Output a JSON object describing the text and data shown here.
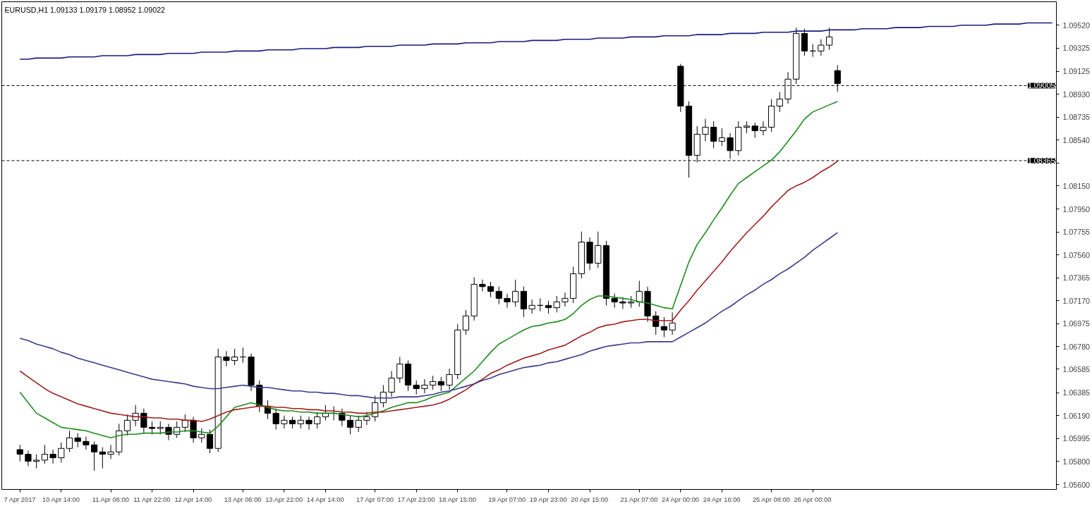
{
  "chart_data": {
    "type": "candlestick",
    "title": "EURUSD,H1  1.09133 1.09179 1.08952 1.09022",
    "color": "#000000",
    "categories": [
      "7 Apr 2017",
      null,
      null,
      null,
      null,
      "10 Apr 14:00",
      null,
      null,
      null,
      null,
      null,
      "11 Apr 06:00",
      null,
      null,
      null,
      null,
      "11 Apr 22:00",
      null,
      null,
      null,
      null,
      "12 Apr 14:00",
      null,
      null,
      null,
      null,
      null,
      "13 Apr 06:00",
      null,
      null,
      null,
      null,
      "13 Apr 22:00",
      null,
      null,
      null,
      null,
      "14 Apr 14:00",
      null,
      null,
      null,
      null,
      null,
      "17 Apr 07:00",
      null,
      null,
      null,
      null,
      "17 Apr 23:00",
      null,
      null,
      null,
      null,
      "18 Apr 15:00",
      null,
      null,
      null,
      null,
      null,
      "19 Apr 07:00",
      null,
      null,
      null,
      null,
      "19 Apr 23:00",
      null,
      null,
      null,
      null,
      "20 Apr 15:00",
      null,
      null,
      null,
      null,
      null,
      "21 Apr 07:00",
      null,
      null,
      null,
      null,
      "24 Apr 00:00",
      null,
      null,
      null,
      null,
      "24 Apr 16:00",
      null,
      null,
      null,
      null,
      null,
      "25 Apr 08:00",
      null,
      null,
      null,
      null,
      "26 Apr 00:00",
      null,
      null,
      null,
      null,
      null,
      null,
      null,
      null,
      null,
      null,
      null,
      null,
      null,
      null,
      null,
      null,
      null,
      null,
      null,
      null,
      null,
      null,
      null,
      null,
      null,
      null,
      null,
      null,
      null
    ],
    "ohlc": [
      [
        1.059,
        1.0594,
        1.058,
        1.0586
      ],
      [
        1.0586,
        1.0589,
        1.0576,
        1.058
      ],
      [
        1.058,
        1.0586,
        1.0574,
        1.0581
      ],
      [
        1.0581,
        1.0594,
        1.0578,
        1.0586
      ],
      [
        1.0586,
        1.059,
        1.0578,
        1.0583
      ],
      [
        1.0583,
        1.0596,
        1.0579,
        1.0591
      ],
      [
        1.0591,
        1.0606,
        1.0588,
        1.06
      ],
      [
        1.06,
        1.0604,
        1.0592,
        1.0597
      ],
      [
        1.0597,
        1.0601,
        1.059,
        1.0594
      ],
      [
        1.0594,
        1.0597,
        1.0572,
        1.0588
      ],
      [
        1.0588,
        1.0592,
        1.0574,
        1.0586
      ],
      [
        1.0586,
        1.0594,
        1.0582,
        1.0588
      ],
      [
        1.0588,
        1.0612,
        1.0585,
        1.0606
      ],
      [
        1.0606,
        1.062,
        1.0602,
        1.0615
      ],
      [
        1.0615,
        1.0628,
        1.061,
        1.0621
      ],
      [
        1.0621,
        1.0625,
        1.0604,
        1.0609
      ],
      [
        1.0609,
        1.0614,
        1.0603,
        1.0608
      ],
      [
        1.0608,
        1.0614,
        1.0603,
        1.0609
      ],
      [
        1.0609,
        1.0612,
        1.0598,
        1.0603
      ],
      [
        1.0603,
        1.0614,
        1.06,
        1.0609
      ],
      [
        1.0609,
        1.062,
        1.0605,
        1.0615
      ],
      [
        1.0615,
        1.0618,
        1.0596,
        1.06
      ],
      [
        1.06,
        1.0608,
        1.0596,
        1.0603
      ],
      [
        1.0603,
        1.0607,
        1.0587,
        1.0591
      ],
      [
        1.0591,
        1.0676,
        1.0588,
        1.0669
      ],
      [
        1.0669,
        1.0674,
        1.0661,
        1.0666
      ],
      [
        1.0666,
        1.0676,
        1.0662,
        1.0669
      ],
      [
        1.0669,
        1.0677,
        1.0664,
        1.0669
      ],
      [
        1.0669,
        1.0672,
        1.064,
        1.0645
      ],
      [
        1.0645,
        1.0649,
        1.0622,
        1.0627
      ],
      [
        1.0627,
        1.0632,
        1.0616,
        1.0621
      ],
      [
        1.0621,
        1.0625,
        1.0607,
        1.0612
      ],
      [
        1.0612,
        1.0619,
        1.0608,
        1.0615
      ],
      [
        1.0615,
        1.0618,
        1.0608,
        1.0612
      ],
      [
        1.0612,
        1.0619,
        1.0608,
        1.0615
      ],
      [
        1.0615,
        1.0618,
        1.0607,
        1.0612
      ],
      [
        1.0612,
        1.0622,
        1.0608,
        1.0618
      ],
      [
        1.0618,
        1.0628,
        1.0615,
        1.0621
      ],
      [
        1.0621,
        1.0627,
        1.0615,
        1.0621
      ],
      [
        1.0621,
        1.0625,
        1.061,
        1.0615
      ],
      [
        1.0615,
        1.0619,
        1.0603,
        1.0609
      ],
      [
        1.0609,
        1.0619,
        1.0605,
        1.0615
      ],
      [
        1.0615,
        1.0622,
        1.0611,
        1.0618
      ],
      [
        1.0618,
        1.0636,
        1.0614,
        1.063
      ],
      [
        1.063,
        1.0645,
        1.0626,
        1.0639
      ],
      [
        1.0639,
        1.0657,
        1.0635,
        1.0651
      ],
      [
        1.0651,
        1.0669,
        1.0647,
        1.0663
      ],
      [
        1.0663,
        1.0666,
        1.064,
        1.0645
      ],
      [
        1.0645,
        1.0649,
        1.0637,
        1.0642
      ],
      [
        1.0642,
        1.065,
        1.0638,
        1.0645
      ],
      [
        1.0645,
        1.0653,
        1.0641,
        1.0648
      ],
      [
        1.0648,
        1.0652,
        1.064,
        1.0645
      ],
      [
        1.0645,
        1.0659,
        1.0641,
        1.0654
      ],
      [
        1.0654,
        1.0697,
        1.065,
        1.0692
      ],
      [
        1.0692,
        1.0709,
        1.0688,
        1.0704
      ],
      [
        1.0704,
        1.0737,
        1.07,
        1.0731
      ],
      [
        1.0731,
        1.0735,
        1.0725,
        1.0729
      ],
      [
        1.0729,
        1.0733,
        1.072,
        1.0725
      ],
      [
        1.0725,
        1.0729,
        1.0714,
        1.0719
      ],
      [
        1.0719,
        1.0723,
        1.0711,
        1.0716
      ],
      [
        1.0716,
        1.0735,
        1.0712,
        1.0725
      ],
      [
        1.0725,
        1.0729,
        1.0703,
        1.071
      ],
      [
        1.071,
        1.0718,
        1.0706,
        1.0713
      ],
      [
        1.0713,
        1.0719,
        1.0708,
        1.0713
      ],
      [
        1.0713,
        1.0717,
        1.0706,
        1.0711
      ],
      [
        1.0711,
        1.0721,
        1.0707,
        1.0716
      ],
      [
        1.0716,
        1.0724,
        1.0712,
        1.0719
      ],
      [
        1.0719,
        1.0746,
        1.0715,
        1.074
      ],
      [
        1.074,
        1.0776,
        1.0736,
        1.0767
      ],
      [
        1.0767,
        1.0771,
        1.0743,
        1.0749
      ],
      [
        1.0749,
        1.0776,
        1.0745,
        1.0764
      ],
      [
        1.0764,
        1.0768,
        1.0713,
        1.0719
      ],
      [
        1.0719,
        1.0723,
        1.0711,
        1.0716
      ],
      [
        1.0716,
        1.072,
        1.071,
        1.0715
      ],
      [
        1.0715,
        1.0721,
        1.0711,
        1.0716
      ],
      [
        1.0716,
        1.0734,
        1.0712,
        1.0725
      ],
      [
        1.0725,
        1.0729,
        1.0699,
        1.0704
      ],
      [
        1.0704,
        1.0708,
        1.0688,
        1.0695
      ],
      [
        1.0695,
        1.0703,
        1.0686,
        1.0692
      ],
      [
        1.0692,
        1.0707,
        1.0688,
        1.0698
      ],
      [
        1.0917,
        1.0919,
        1.0878,
        1.0883
      ],
      [
        1.0883,
        1.0887,
        1.0822,
        1.0841
      ],
      [
        1.0841,
        1.0866,
        1.0835,
        1.0859
      ],
      [
        1.0859,
        1.0872,
        1.0853,
        1.0865
      ],
      [
        1.0865,
        1.087,
        1.0847,
        1.0853
      ],
      [
        1.0853,
        1.0864,
        1.0849,
        1.0856
      ],
      [
        1.0856,
        1.086,
        1.0838,
        1.0845
      ],
      [
        1.0845,
        1.087,
        1.0841,
        1.0865
      ],
      [
        1.0865,
        1.087,
        1.086,
        1.0866
      ],
      [
        1.0866,
        1.0869,
        1.0856,
        1.0862
      ],
      [
        1.0862,
        1.087,
        1.0858,
        1.0865
      ],
      [
        1.0865,
        1.0889,
        1.0861,
        1.0883
      ],
      [
        1.0883,
        1.0895,
        1.0878,
        1.0889
      ],
      [
        1.0889,
        1.0912,
        1.0885,
        1.0906
      ],
      [
        1.0906,
        1.095,
        1.0902,
        1.0945
      ],
      [
        1.0945,
        1.0949,
        1.0926,
        1.093
      ],
      [
        1.093,
        1.0936,
        1.0925,
        1.093
      ],
      [
        1.093,
        1.094,
        1.0926,
        1.0935
      ],
      [
        1.0935,
        1.095,
        1.0931,
        1.0942
      ],
      [
        1.09133,
        1.09179,
        1.08952,
        1.09022
      ],
      null,
      null,
      null,
      null,
      null,
      null,
      null,
      null,
      null,
      null,
      null,
      null,
      null,
      null,
      null,
      null,
      null,
      null,
      null,
      null,
      null,
      null,
      null,
      null,
      null,
      null
    ],
    "series": [
      {
        "type": "line",
        "color": "#1e8c1e",
        "values": [
          1.0639,
          1.063,
          1.0621,
          1.0617,
          1.0613,
          1.0609,
          1.0608,
          1.0607,
          1.0606,
          1.0604,
          1.0602,
          1.06,
          1.0602,
          1.0603,
          1.0603,
          1.0604,
          1.0604,
          1.0604,
          1.0605,
          1.0605,
          1.0606,
          1.0606,
          1.0605,
          1.0604,
          1.061,
          1.0618,
          1.0626,
          1.0628,
          1.063,
          1.0628,
          1.0626,
          1.0624,
          1.0623,
          1.0623,
          1.0622,
          1.0622,
          1.0621,
          1.0621,
          1.0621,
          1.062,
          1.0619,
          1.0618,
          1.0619,
          1.0621,
          1.0623,
          1.0626,
          1.0628,
          1.063,
          1.063,
          1.0632,
          1.0635,
          1.0637,
          1.0639,
          1.0645,
          1.0651,
          1.0657,
          1.0665,
          1.0673,
          1.068,
          1.0684,
          1.0688,
          1.0692,
          1.0695,
          1.0696,
          1.0698,
          1.0699,
          1.0701,
          1.0706,
          1.0713,
          1.0718,
          1.0721,
          1.0721,
          1.072,
          1.0719,
          1.0718,
          1.0716,
          1.0715,
          1.0713,
          1.0711,
          1.071,
          1.073,
          1.075,
          1.0765,
          1.0775,
          1.0786,
          1.0796,
          1.0807,
          1.0817,
          1.0822,
          1.0827,
          1.0832,
          1.0837,
          1.0844,
          1.0853,
          1.0862,
          1.0872,
          1.0878,
          1.0881,
          1.0884,
          1.0887,
          null,
          null,
          null,
          null,
          null,
          null,
          null,
          null,
          null,
          null,
          null,
          null,
          null,
          null,
          null,
          null,
          null,
          null,
          null,
          null,
          null,
          null,
          null,
          null,
          null,
          null
        ]
      },
      {
        "type": "line",
        "color": "#a01e1e",
        "values": [
          1.0657,
          1.0652,
          1.0647,
          1.0642,
          1.0638,
          1.0635,
          1.0632,
          1.0629,
          1.0627,
          1.0625,
          1.0623,
          1.0621,
          1.062,
          1.0619,
          1.0618,
          1.0618,
          1.0617,
          1.0617,
          1.0616,
          1.0616,
          1.0615,
          1.0615,
          1.0614,
          1.0616,
          1.0619,
          1.0622,
          1.0624,
          1.0625,
          1.0626,
          1.0627,
          1.0627,
          1.0626,
          1.0626,
          1.0625,
          1.0625,
          1.0624,
          1.0624,
          1.0623,
          1.0623,
          1.0622,
          1.0622,
          1.0621,
          1.0621,
          1.0622,
          1.0622,
          1.0623,
          1.0624,
          1.0625,
          1.0626,
          1.0627,
          1.0628,
          1.063,
          1.0633,
          1.0637,
          1.0641,
          1.0646,
          1.065,
          1.0655,
          1.0658,
          1.0662,
          1.0665,
          1.0668,
          1.067,
          1.0672,
          1.0675,
          1.0677,
          1.0679,
          1.0683,
          1.0687,
          1.069,
          1.0694,
          1.0696,
          1.0697,
          1.0699,
          1.07,
          1.0701,
          1.0701,
          1.07,
          1.07,
          1.07,
          1.0709,
          1.0717,
          1.0726,
          1.0734,
          1.0742,
          1.075,
          1.0759,
          1.0767,
          1.0775,
          1.0782,
          1.0789,
          1.0797,
          1.0804,
          1.0811,
          1.0815,
          1.0818,
          1.0822,
          1.0827,
          1.0831,
          1.0836,
          null,
          null,
          null,
          null,
          null,
          null,
          null,
          null,
          null,
          null,
          null,
          null,
          null,
          null,
          null,
          null,
          null,
          null,
          null,
          null,
          null,
          null,
          null,
          null,
          null,
          null
        ]
      },
      {
        "type": "line",
        "color": "#3a3a8c",
        "values": [
          1.0685,
          1.0683,
          1.068,
          1.0678,
          1.0676,
          1.0673,
          1.0671,
          1.0668,
          1.0666,
          1.0664,
          1.0662,
          1.066,
          1.0658,
          1.0656,
          1.0654,
          1.0652,
          1.065,
          1.0649,
          1.0648,
          1.0647,
          1.0646,
          1.0644,
          1.0643,
          1.0642,
          1.0642,
          1.0643,
          1.0644,
          1.0645,
          1.0644,
          1.0643,
          1.0643,
          1.0642,
          1.0641,
          1.064,
          1.064,
          1.0639,
          1.0639,
          1.0638,
          1.0638,
          1.0637,
          1.0636,
          1.0636,
          1.0635,
          1.0634,
          1.0634,
          1.0634,
          1.0635,
          1.0635,
          1.0635,
          1.0636,
          1.0637,
          1.0639,
          1.064,
          1.0642,
          1.0644,
          1.0646,
          1.0649,
          1.0651,
          1.0654,
          1.0656,
          1.0658,
          1.066,
          1.0661,
          1.0662,
          1.0664,
          1.0665,
          1.0667,
          1.0669,
          1.0671,
          1.0674,
          1.0676,
          1.0678,
          1.0679,
          1.068,
          1.0681,
          1.0681,
          1.0682,
          1.0682,
          1.0682,
          1.0682,
          1.0686,
          1.069,
          1.0694,
          1.0698,
          1.0703,
          1.0708,
          1.0712,
          1.0717,
          1.0722,
          1.0726,
          1.0731,
          1.0735,
          1.074,
          1.0744,
          1.0749,
          1.0754,
          1.076,
          1.0765,
          1.077,
          1.0775,
          null,
          null,
          null,
          null,
          null,
          null,
          null,
          null,
          null,
          null,
          null,
          null,
          null,
          null,
          null,
          null,
          null,
          null,
          null,
          null,
          null,
          null,
          null,
          null,
          null,
          null
        ]
      },
      {
        "type": "line",
        "color": "#1a1a80",
        "values": [
          1.0923,
          1.0923,
          1.0924,
          1.0924,
          1.0924,
          1.0924,
          1.0925,
          1.0925,
          1.0925,
          1.0925,
          1.0926,
          1.0926,
          1.0926,
          1.0926,
          1.0927,
          1.0927,
          1.0927,
          1.0927,
          1.0928,
          1.0928,
          1.0928,
          1.0928,
          1.0929,
          1.0929,
          1.0929,
          1.0929,
          1.093,
          1.093,
          1.093,
          1.093,
          1.0931,
          1.0931,
          1.0931,
          1.0931,
          1.0932,
          1.0932,
          1.0932,
          1.0932,
          1.0933,
          1.0933,
          1.0933,
          1.0933,
          1.0934,
          1.0934,
          1.0934,
          1.0934,
          1.0935,
          1.0935,
          1.0935,
          1.0935,
          1.0936,
          1.0936,
          1.0936,
          1.0936,
          1.0937,
          1.0937,
          1.0937,
          1.0937,
          1.0938,
          1.0938,
          1.0938,
          1.0938,
          1.0939,
          1.0939,
          1.0939,
          1.0939,
          1.094,
          1.094,
          1.094,
          1.094,
          1.0941,
          1.0941,
          1.0941,
          1.0941,
          1.0942,
          1.0942,
          1.0942,
          1.0942,
          1.0943,
          1.0943,
          1.0943,
          1.0943,
          1.0944,
          1.0944,
          1.0944,
          1.0944,
          1.0945,
          1.0945,
          1.0945,
          1.0945,
          1.0946,
          1.0946,
          1.0946,
          1.0946,
          1.0947,
          1.0947,
          1.0947,
          1.0947,
          1.0948,
          1.0948,
          1.0948,
          1.0948,
          1.0949,
          1.0949,
          1.0949,
          1.0949,
          1.095,
          1.095,
          1.095,
          1.095,
          1.0951,
          1.0951,
          1.0951,
          1.0951,
          1.0952,
          1.0952,
          1.0952,
          1.0952,
          1.0953,
          1.0953,
          1.0953,
          1.0953,
          1.0954,
          1.0954,
          1.0954,
          1.0954
        ]
      }
    ],
    "ref_lines": [
      {
        "axis": "y",
        "value": 1.09005,
        "label": "1.09005",
        "color": "#000000",
        "line_style": "dashed"
      },
      {
        "axis": "y",
        "value": 1.08365,
        "label": "1.08365",
        "color": "#000000",
        "line_style": "dashed"
      }
    ],
    "ylim": [
      1.0556,
      1.0972
    ],
    "yticks": [
      {
        "value": 1.0952,
        "label": "1.09520"
      },
      {
        "value": 1.09325,
        "label": "1.09325"
      },
      {
        "value": 1.09125,
        "label": "1.09125"
      },
      {
        "value": 1.0893,
        "label": "1.08930"
      },
      {
        "value": 1.08735,
        "label": "1.08735"
      },
      {
        "value": 1.0854,
        "label": "1.08540"
      },
      {
        "value": 1.08345,
        "label": null
      },
      {
        "value": 1.0815,
        "label": "1.08150"
      },
      {
        "value": 1.0795,
        "label": "1.07950"
      },
      {
        "value": 1.07755,
        "label": "1.07755"
      },
      {
        "value": 1.0756,
        "label": "1.07560"
      },
      {
        "value": 1.07365,
        "label": "1.07365"
      },
      {
        "value": 1.0717,
        "label": "1.07170"
      },
      {
        "value": 1.06975,
        "label": "1.06975"
      },
      {
        "value": 1.0678,
        "label": "1.06780"
      },
      {
        "value": 1.06585,
        "label": "1.06585"
      },
      {
        "value": 1.06385,
        "label": "1.06385"
      },
      {
        "value": 1.0619,
        "label": "1.06190"
      },
      {
        "value": 1.05995,
        "label": "1.05995"
      },
      {
        "value": 1.058,
        "label": "1.05800"
      },
      {
        "value": 1.056,
        "label": "1.05600"
      }
    ],
    "grid": false
  }
}
